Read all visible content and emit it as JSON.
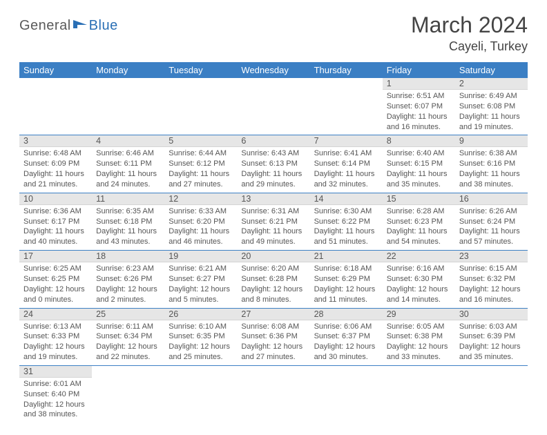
{
  "logo": {
    "part1": "General",
    "part2": "Blue"
  },
  "title": "March 2024",
  "location": "Cayeli, Turkey",
  "colors": {
    "header_bg": "#3b7fc4",
    "header_fg": "#ffffff",
    "daynum_bg": "#e6e6e6",
    "row_border": "#3b7fc4",
    "text": "#555555",
    "logo_gray": "#5a5a5a",
    "logo_blue": "#2a6fb5"
  },
  "weekdays": [
    "Sunday",
    "Monday",
    "Tuesday",
    "Wednesday",
    "Thursday",
    "Friday",
    "Saturday"
  ],
  "weeks": [
    [
      null,
      null,
      null,
      null,
      null,
      {
        "n": "1",
        "sr": "Sunrise: 6:51 AM",
        "ss": "Sunset: 6:07 PM",
        "d1": "Daylight: 11 hours",
        "d2": "and 16 minutes."
      },
      {
        "n": "2",
        "sr": "Sunrise: 6:49 AM",
        "ss": "Sunset: 6:08 PM",
        "d1": "Daylight: 11 hours",
        "d2": "and 19 minutes."
      }
    ],
    [
      {
        "n": "3",
        "sr": "Sunrise: 6:48 AM",
        "ss": "Sunset: 6:09 PM",
        "d1": "Daylight: 11 hours",
        "d2": "and 21 minutes."
      },
      {
        "n": "4",
        "sr": "Sunrise: 6:46 AM",
        "ss": "Sunset: 6:11 PM",
        "d1": "Daylight: 11 hours",
        "d2": "and 24 minutes."
      },
      {
        "n": "5",
        "sr": "Sunrise: 6:44 AM",
        "ss": "Sunset: 6:12 PM",
        "d1": "Daylight: 11 hours",
        "d2": "and 27 minutes."
      },
      {
        "n": "6",
        "sr": "Sunrise: 6:43 AM",
        "ss": "Sunset: 6:13 PM",
        "d1": "Daylight: 11 hours",
        "d2": "and 29 minutes."
      },
      {
        "n": "7",
        "sr": "Sunrise: 6:41 AM",
        "ss": "Sunset: 6:14 PM",
        "d1": "Daylight: 11 hours",
        "d2": "and 32 minutes."
      },
      {
        "n": "8",
        "sr": "Sunrise: 6:40 AM",
        "ss": "Sunset: 6:15 PM",
        "d1": "Daylight: 11 hours",
        "d2": "and 35 minutes."
      },
      {
        "n": "9",
        "sr": "Sunrise: 6:38 AM",
        "ss": "Sunset: 6:16 PM",
        "d1": "Daylight: 11 hours",
        "d2": "and 38 minutes."
      }
    ],
    [
      {
        "n": "10",
        "sr": "Sunrise: 6:36 AM",
        "ss": "Sunset: 6:17 PM",
        "d1": "Daylight: 11 hours",
        "d2": "and 40 minutes."
      },
      {
        "n": "11",
        "sr": "Sunrise: 6:35 AM",
        "ss": "Sunset: 6:18 PM",
        "d1": "Daylight: 11 hours",
        "d2": "and 43 minutes."
      },
      {
        "n": "12",
        "sr": "Sunrise: 6:33 AM",
        "ss": "Sunset: 6:20 PM",
        "d1": "Daylight: 11 hours",
        "d2": "and 46 minutes."
      },
      {
        "n": "13",
        "sr": "Sunrise: 6:31 AM",
        "ss": "Sunset: 6:21 PM",
        "d1": "Daylight: 11 hours",
        "d2": "and 49 minutes."
      },
      {
        "n": "14",
        "sr": "Sunrise: 6:30 AM",
        "ss": "Sunset: 6:22 PM",
        "d1": "Daylight: 11 hours",
        "d2": "and 51 minutes."
      },
      {
        "n": "15",
        "sr": "Sunrise: 6:28 AM",
        "ss": "Sunset: 6:23 PM",
        "d1": "Daylight: 11 hours",
        "d2": "and 54 minutes."
      },
      {
        "n": "16",
        "sr": "Sunrise: 6:26 AM",
        "ss": "Sunset: 6:24 PM",
        "d1": "Daylight: 11 hours",
        "d2": "and 57 minutes."
      }
    ],
    [
      {
        "n": "17",
        "sr": "Sunrise: 6:25 AM",
        "ss": "Sunset: 6:25 PM",
        "d1": "Daylight: 12 hours",
        "d2": "and 0 minutes."
      },
      {
        "n": "18",
        "sr": "Sunrise: 6:23 AM",
        "ss": "Sunset: 6:26 PM",
        "d1": "Daylight: 12 hours",
        "d2": "and 2 minutes."
      },
      {
        "n": "19",
        "sr": "Sunrise: 6:21 AM",
        "ss": "Sunset: 6:27 PM",
        "d1": "Daylight: 12 hours",
        "d2": "and 5 minutes."
      },
      {
        "n": "20",
        "sr": "Sunrise: 6:20 AM",
        "ss": "Sunset: 6:28 PM",
        "d1": "Daylight: 12 hours",
        "d2": "and 8 minutes."
      },
      {
        "n": "21",
        "sr": "Sunrise: 6:18 AM",
        "ss": "Sunset: 6:29 PM",
        "d1": "Daylight: 12 hours",
        "d2": "and 11 minutes."
      },
      {
        "n": "22",
        "sr": "Sunrise: 6:16 AM",
        "ss": "Sunset: 6:30 PM",
        "d1": "Daylight: 12 hours",
        "d2": "and 14 minutes."
      },
      {
        "n": "23",
        "sr": "Sunrise: 6:15 AM",
        "ss": "Sunset: 6:32 PM",
        "d1": "Daylight: 12 hours",
        "d2": "and 16 minutes."
      }
    ],
    [
      {
        "n": "24",
        "sr": "Sunrise: 6:13 AM",
        "ss": "Sunset: 6:33 PM",
        "d1": "Daylight: 12 hours",
        "d2": "and 19 minutes."
      },
      {
        "n": "25",
        "sr": "Sunrise: 6:11 AM",
        "ss": "Sunset: 6:34 PM",
        "d1": "Daylight: 12 hours",
        "d2": "and 22 minutes."
      },
      {
        "n": "26",
        "sr": "Sunrise: 6:10 AM",
        "ss": "Sunset: 6:35 PM",
        "d1": "Daylight: 12 hours",
        "d2": "and 25 minutes."
      },
      {
        "n": "27",
        "sr": "Sunrise: 6:08 AM",
        "ss": "Sunset: 6:36 PM",
        "d1": "Daylight: 12 hours",
        "d2": "and 27 minutes."
      },
      {
        "n": "28",
        "sr": "Sunrise: 6:06 AM",
        "ss": "Sunset: 6:37 PM",
        "d1": "Daylight: 12 hours",
        "d2": "and 30 minutes."
      },
      {
        "n": "29",
        "sr": "Sunrise: 6:05 AM",
        "ss": "Sunset: 6:38 PM",
        "d1": "Daylight: 12 hours",
        "d2": "and 33 minutes."
      },
      {
        "n": "30",
        "sr": "Sunrise: 6:03 AM",
        "ss": "Sunset: 6:39 PM",
        "d1": "Daylight: 12 hours",
        "d2": "and 35 minutes."
      }
    ],
    [
      {
        "n": "31",
        "sr": "Sunrise: 6:01 AM",
        "ss": "Sunset: 6:40 PM",
        "d1": "Daylight: 12 hours",
        "d2": "and 38 minutes."
      },
      null,
      null,
      null,
      null,
      null,
      null
    ]
  ]
}
